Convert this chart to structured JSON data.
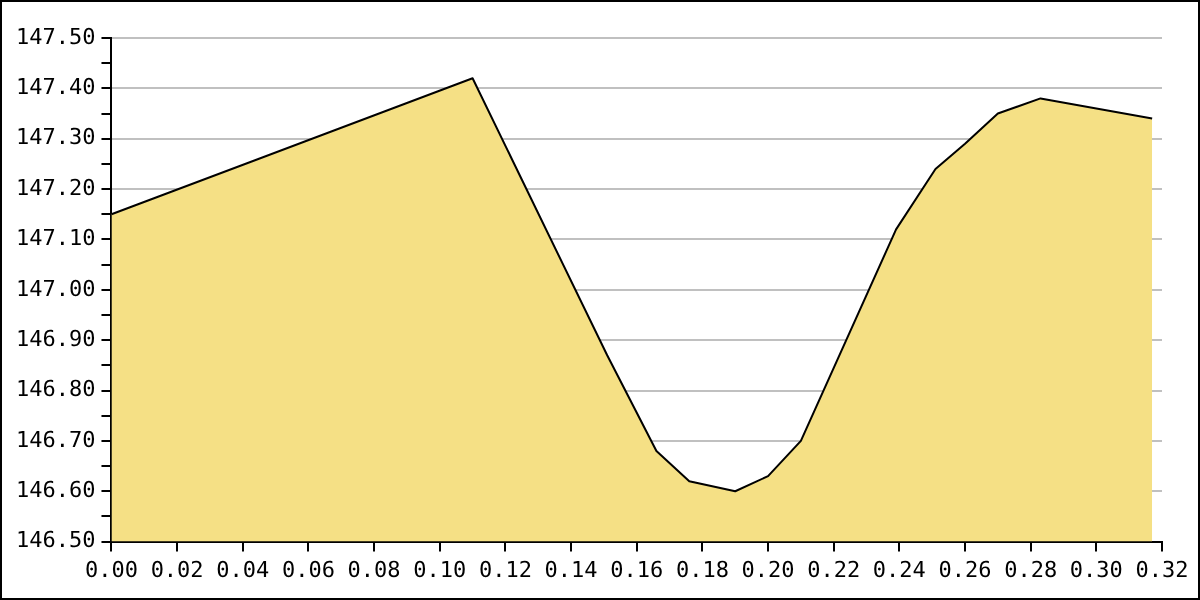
{
  "chart_data": {
    "type": "area",
    "color": "#f5e085",
    "x": [
      0,
      0.11,
      0.151,
      0.166,
      0.176,
      0.19,
      0.2,
      0.21,
      0.239,
      0.251,
      0.26,
      0.27,
      0.283,
      0.317
    ],
    "values": [
      147.15,
      147.42,
      146.87,
      146.68,
      146.62,
      146.6,
      146.63,
      146.7,
      147.12,
      147.24,
      147.29,
      147.35,
      147.38,
      147.34
    ],
    "xlim": [
      0,
      0.32
    ],
    "xticks": [
      {
        "value": 0,
        "label": "0.00"
      },
      {
        "value": 0.02,
        "label": "0.02"
      },
      {
        "value": 0.04,
        "label": "0.04"
      },
      {
        "value": 0.06,
        "label": "0.06"
      },
      {
        "value": 0.08,
        "label": "0.08"
      },
      {
        "value": 0.1,
        "label": "0.10"
      },
      {
        "value": 0.12,
        "label": "0.12"
      },
      {
        "value": 0.14,
        "label": "0.14"
      },
      {
        "value": 0.16,
        "label": "0.16"
      },
      {
        "value": 0.18,
        "label": "0.18"
      },
      {
        "value": 0.2,
        "label": "0.20"
      },
      {
        "value": 0.22,
        "label": "0.22"
      },
      {
        "value": 0.24,
        "label": "0.24"
      },
      {
        "value": 0.26,
        "label": "0.26"
      },
      {
        "value": 0.28,
        "label": "0.28"
      },
      {
        "value": 0.3,
        "label": "0.30"
      },
      {
        "value": 0.32,
        "label": "0.32"
      }
    ],
    "ylim": [
      146.5,
      147.5
    ],
    "yticks": [
      {
        "value": 146.5,
        "label": "146.50"
      },
      {
        "value": 146.55,
        "label": null
      },
      {
        "value": 146.6,
        "label": "146.60"
      },
      {
        "value": 146.65,
        "label": null
      },
      {
        "value": 146.7,
        "label": "146.70"
      },
      {
        "value": 146.75,
        "label": null
      },
      {
        "value": 146.8,
        "label": "146.80"
      },
      {
        "value": 146.85,
        "label": null
      },
      {
        "value": 146.9,
        "label": "146.90"
      },
      {
        "value": 146.95,
        "label": null
      },
      {
        "value": 147,
        "label": "147.00"
      },
      {
        "value": 147.05,
        "label": null
      },
      {
        "value": 147.1,
        "label": "147.10"
      },
      {
        "value": 147.15,
        "label": null
      },
      {
        "value": 147.2,
        "label": "147.20"
      },
      {
        "value": 147.25,
        "label": null
      },
      {
        "value": 147.3,
        "label": "147.30"
      },
      {
        "value": 147.35,
        "label": null
      },
      {
        "value": 147.4,
        "label": "147.40"
      },
      {
        "value": 147.45,
        "label": null
      },
      {
        "value": 147.5,
        "label": "147.50"
      }
    ],
    "grid": "y"
  }
}
